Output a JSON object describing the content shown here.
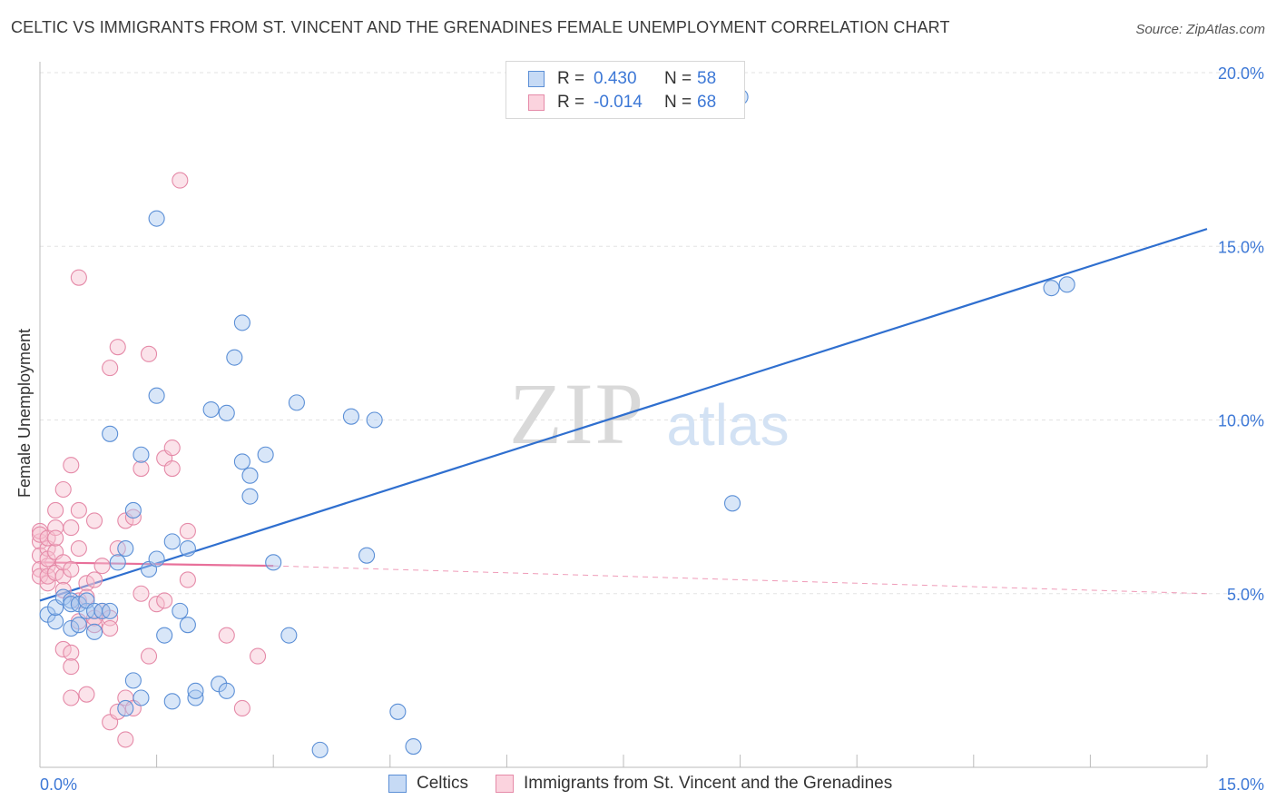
{
  "title": "CELTIC VS IMMIGRANTS FROM ST. VINCENT AND THE GRENADINES FEMALE UNEMPLOYMENT CORRELATION CHART",
  "source": "Source: ZipAtlas.com",
  "watermark": {
    "zip": "ZIP",
    "atlas": "atlas"
  },
  "legend": {
    "rows": [
      {
        "r_label": "R =",
        "r_value": "0.430",
        "n_label": "N =",
        "n_value": "58",
        "color": "#a9c8f0",
        "border": "#5b8fd6"
      },
      {
        "r_label": "R =",
        "r_value": "-0.014",
        "n_label": "N =",
        "n_value": "68",
        "color": "#f7c1d0",
        "border": "#e58aa8"
      }
    ]
  },
  "bottom_legend": [
    "Celtics",
    "Immigrants from St. Vincent and the Grenadines"
  ],
  "chart_data": {
    "type": "scatter",
    "xlabel": "",
    "ylabel": "Female Unemployment",
    "xlim": [
      0,
      15
    ],
    "ylim": [
      0,
      20
    ],
    "x_tick_labels": [
      "0.0%",
      "15.0%"
    ],
    "y_tick_labels": [
      "5.0%",
      "10.0%",
      "15.0%",
      "20.0%"
    ],
    "y_ticks": [
      5,
      10,
      15,
      20
    ],
    "grid": true,
    "legend_position": "top-center",
    "colors": {
      "celtics": "#5b8fd6",
      "celtics_fill": "#a9c8f0",
      "celtics_line": "#2f6fcf",
      "svg": "#e58aa8",
      "svg_fill": "#f7c1d0",
      "svg_line": "#e8709a"
    },
    "series": [
      {
        "name": "Celtics",
        "points": [
          [
            0.1,
            4.4
          ],
          [
            0.2,
            4.2
          ],
          [
            0.2,
            4.6
          ],
          [
            0.3,
            4.9
          ],
          [
            0.4,
            4.8
          ],
          [
            0.4,
            4.0
          ],
          [
            0.4,
            4.7
          ],
          [
            0.5,
            4.1
          ],
          [
            0.5,
            4.7
          ],
          [
            0.6,
            4.5
          ],
          [
            0.6,
            4.8
          ],
          [
            0.7,
            4.5
          ],
          [
            0.7,
            3.9
          ],
          [
            0.8,
            4.5
          ],
          [
            0.9,
            9.6
          ],
          [
            0.9,
            4.5
          ],
          [
            1.0,
            5.9
          ],
          [
            1.1,
            6.3
          ],
          [
            1.1,
            1.7
          ],
          [
            1.2,
            2.5
          ],
          [
            1.2,
            7.4
          ],
          [
            1.3,
            2.0
          ],
          [
            1.3,
            9.0
          ],
          [
            1.4,
            5.7
          ],
          [
            1.5,
            6.0
          ],
          [
            1.5,
            10.7
          ],
          [
            1.5,
            15.8
          ],
          [
            1.6,
            3.8
          ],
          [
            1.7,
            6.5
          ],
          [
            1.7,
            1.9
          ],
          [
            1.8,
            4.5
          ],
          [
            1.9,
            4.1
          ],
          [
            1.9,
            6.3
          ],
          [
            2.0,
            2.0
          ],
          [
            2.0,
            2.2
          ],
          [
            2.2,
            10.3
          ],
          [
            2.3,
            2.4
          ],
          [
            2.4,
            2.2
          ],
          [
            2.4,
            10.2
          ],
          [
            2.5,
            11.8
          ],
          [
            2.6,
            8.8
          ],
          [
            2.6,
            12.8
          ],
          [
            2.7,
            7.8
          ],
          [
            2.7,
            8.4
          ],
          [
            2.9,
            9.0
          ],
          [
            3.0,
            5.9
          ],
          [
            3.2,
            3.8
          ],
          [
            3.3,
            10.5
          ],
          [
            3.6,
            0.5
          ],
          [
            4.0,
            10.1
          ],
          [
            4.2,
            6.1
          ],
          [
            4.3,
            10.0
          ],
          [
            4.6,
            1.6
          ],
          [
            4.8,
            0.6
          ],
          [
            8.9,
            7.6
          ],
          [
            9.0,
            19.3
          ],
          [
            13.0,
            13.8
          ],
          [
            13.2,
            13.9
          ]
        ]
      },
      {
        "name": "Immigrants from St. Vincent and the Grenadines",
        "points": [
          [
            0.0,
            6.5
          ],
          [
            0.0,
            6.1
          ],
          [
            0.0,
            5.7
          ],
          [
            0.0,
            5.5
          ],
          [
            0.0,
            6.8
          ],
          [
            0.0,
            6.7
          ],
          [
            0.1,
            6.3
          ],
          [
            0.1,
            5.8
          ],
          [
            0.1,
            5.3
          ],
          [
            0.1,
            6.0
          ],
          [
            0.1,
            5.5
          ],
          [
            0.1,
            6.6
          ],
          [
            0.2,
            6.9
          ],
          [
            0.2,
            7.4
          ],
          [
            0.2,
            5.6
          ],
          [
            0.2,
            6.2
          ],
          [
            0.2,
            6.6
          ],
          [
            0.3,
            5.5
          ],
          [
            0.3,
            5.9
          ],
          [
            0.3,
            5.1
          ],
          [
            0.3,
            8.0
          ],
          [
            0.3,
            3.4
          ],
          [
            0.4,
            6.9
          ],
          [
            0.4,
            5.7
          ],
          [
            0.4,
            8.7
          ],
          [
            0.4,
            3.3
          ],
          [
            0.4,
            2.9
          ],
          [
            0.4,
            2.0
          ],
          [
            0.5,
            7.4
          ],
          [
            0.5,
            4.8
          ],
          [
            0.5,
            4.2
          ],
          [
            0.5,
            14.1
          ],
          [
            0.5,
            6.3
          ],
          [
            0.6,
            5.3
          ],
          [
            0.6,
            4.9
          ],
          [
            0.6,
            2.1
          ],
          [
            0.7,
            5.4
          ],
          [
            0.7,
            7.1
          ],
          [
            0.7,
            4.1
          ],
          [
            0.7,
            4.3
          ],
          [
            0.8,
            4.5
          ],
          [
            0.8,
            5.8
          ],
          [
            0.9,
            4.3
          ],
          [
            0.9,
            4.0
          ],
          [
            0.9,
            1.3
          ],
          [
            0.9,
            11.5
          ],
          [
            1.0,
            12.1
          ],
          [
            1.0,
            6.3
          ],
          [
            1.0,
            1.6
          ],
          [
            1.1,
            0.8
          ],
          [
            1.1,
            2.0
          ],
          [
            1.1,
            7.1
          ],
          [
            1.2,
            7.2
          ],
          [
            1.2,
            1.7
          ],
          [
            1.3,
            8.6
          ],
          [
            1.3,
            5.0
          ],
          [
            1.4,
            3.2
          ],
          [
            1.4,
            11.9
          ],
          [
            1.5,
            4.7
          ],
          [
            1.6,
            4.8
          ],
          [
            1.6,
            8.9
          ],
          [
            1.7,
            8.6
          ],
          [
            1.7,
            9.2
          ],
          [
            1.8,
            16.9
          ],
          [
            1.9,
            5.4
          ],
          [
            1.9,
            6.8
          ],
          [
            2.4,
            3.8
          ],
          [
            2.6,
            1.7
          ],
          [
            2.8,
            3.2
          ]
        ]
      }
    ],
    "trend_lines": [
      {
        "series": "Celtics",
        "x": [
          0.0,
          15.0
        ],
        "y": [
          4.8,
          15.5
        ]
      },
      {
        "series": "Immigrants from St. Vincent and the Grenadines",
        "x": [
          0.0,
          3.0,
          15.0
        ],
        "y": [
          5.9,
          5.8,
          5.0
        ]
      }
    ]
  }
}
